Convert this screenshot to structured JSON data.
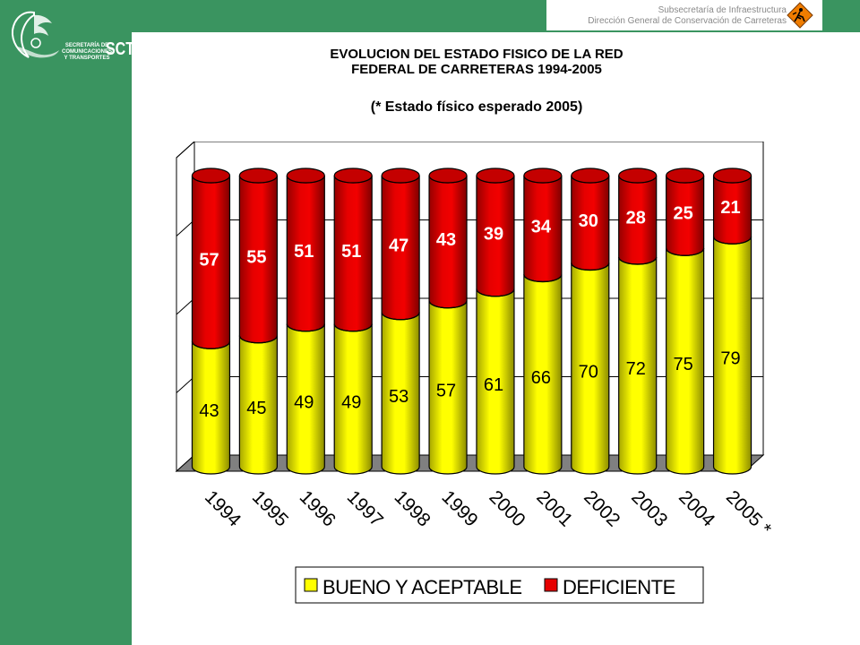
{
  "header": {
    "line1": "Subsecretaría de Infraestructura",
    "line2": "Dirección General de Conservación de Carreteras"
  },
  "logo": {
    "line1": "SECRETARÍA DE",
    "line2": "COMUNICACIONES",
    "line3": "Y TRANSPORTES",
    "acronym": "SCT"
  },
  "colors": {
    "sidebar": "#3a9460",
    "bueno": "#ffff00",
    "deficiente": "#e60000",
    "floor": "#808080"
  },
  "chart_data": {
    "type": "bar",
    "stacked": true,
    "title_line1": "EVOLUCION DEL ESTADO FISICO DE LA RED",
    "title_line2": "FEDERAL DE CARRETERAS 1994-2005",
    "subtitle": "(* Estado físico esperado 2005)",
    "categories": [
      "1994",
      "1995",
      "1996",
      "1997",
      "1998",
      "1999",
      "2000",
      "2001",
      "2002",
      "2003",
      "2004",
      "2005 *"
    ],
    "series": [
      {
        "name": "BUENO Y ACEPTABLE",
        "color": "#ffff00",
        "values": [
          43,
          45,
          49,
          49,
          53,
          57,
          61,
          66,
          70,
          72,
          75,
          79
        ]
      },
      {
        "name": "DEFICIENTE",
        "color": "#e60000",
        "values": [
          57,
          55,
          51,
          51,
          47,
          43,
          39,
          34,
          30,
          28,
          25,
          21
        ]
      }
    ],
    "ylim": [
      0,
      100
    ],
    "grid": true,
    "legend": "bottom"
  }
}
